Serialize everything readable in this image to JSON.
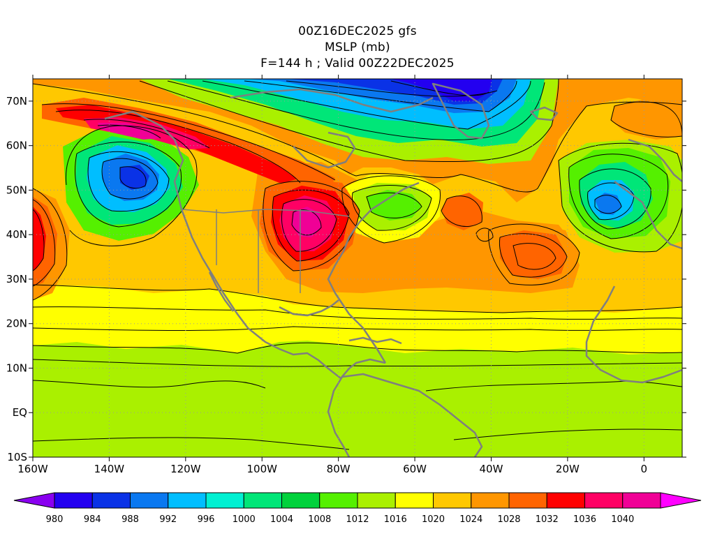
{
  "title": {
    "line1": "00Z16DEC2025 gfs",
    "line2": "MSLP (mb)",
    "line3": "F=144 h ; Valid 00Z22DEC2025"
  },
  "chart_data": {
    "type": "heatmap",
    "variable": "MSLP (mb)",
    "x_axis": {
      "range_deg": [
        -160,
        10
      ],
      "ticks": [
        -160,
        -140,
        -120,
        -100,
        -80,
        -60,
        -40,
        -20,
        0
      ],
      "tick_labels": [
        "160W",
        "140W",
        "120W",
        "100W",
        "80W",
        "60W",
        "40W",
        "20W",
        "0"
      ]
    },
    "y_axis": {
      "range_deg": [
        -10,
        75
      ],
      "ticks": [
        70,
        60,
        50,
        40,
        30,
        20,
        10,
        0,
        -10
      ],
      "tick_labels": [
        "70N",
        "60N",
        "50N",
        "40N",
        "30N",
        "20N",
        "10N",
        "EQ",
        "10S"
      ]
    },
    "grid": "dotted",
    "colorbar": {
      "placement": "bottom",
      "levels": [
        980,
        984,
        988,
        992,
        996,
        1000,
        1004,
        1008,
        1012,
        1016,
        1020,
        1024,
        1028,
        1032,
        1036,
        1040
      ],
      "colors": [
        "#8a00f0",
        "#2300f0",
        "#0a32e6",
        "#0a78f0",
        "#00beff",
        "#00f0d2",
        "#00e678",
        "#00d23c",
        "#55f000",
        "#aaf000",
        "#ffff00",
        "#ffc800",
        "#ff9600",
        "#ff6400",
        "#ff0000",
        "#ff0064",
        "#f00096",
        "#ff00ff"
      ]
    },
    "pressure_systems": [
      {
        "lon": -132,
        "lat": 52,
        "value": 988
      },
      {
        "lon": -12,
        "lat": 46,
        "value": 988
      },
      {
        "lon": -90,
        "lat": 41,
        "value": 1036
      },
      {
        "lon": -32,
        "lat": 35,
        "value": 1028
      },
      {
        "lon": -46,
        "lat": 44,
        "value": 1028
      },
      {
        "lon": -158,
        "lat": 38,
        "value": 1032
      },
      {
        "lon": -64,
        "lat": 48,
        "value": 1004
      },
      {
        "lon": -136,
        "lat": 63,
        "value": 1036
      },
      {
        "lon": -50,
        "lat": 69,
        "value": 984
      },
      {
        "lon": -75,
        "lat": 70,
        "value": 984
      }
    ]
  }
}
